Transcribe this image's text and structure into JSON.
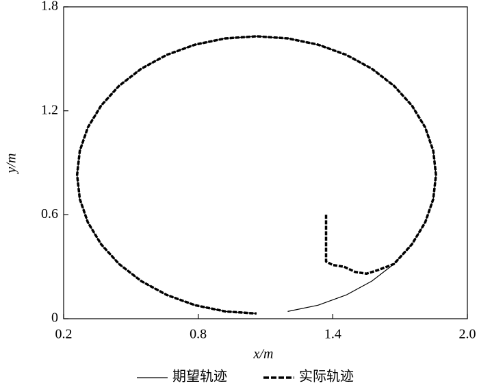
{
  "chart_data": {
    "type": "line",
    "xlabel": "x/m",
    "ylabel": "y/m",
    "xlim": [
      0.2,
      2.0
    ],
    "ylim": [
      0,
      1.8
    ],
    "xticks": [
      0.2,
      0.8,
      1.4,
      {
        "value": 2.0,
        "label": "2.0"
      }
    ],
    "yticks": [
      0,
      0.6,
      1.2,
      1.8
    ],
    "series": [
      {
        "name": "期望轨迹",
        "color": "#000000",
        "dash": false,
        "x": [
          1.199,
          1.334,
          1.46,
          1.574,
          1.673,
          1.753,
          1.812,
          1.848,
          1.86,
          1.848,
          1.812,
          1.753,
          1.673,
          1.574,
          1.46,
          1.334,
          1.199,
          1.06,
          0.921,
          0.786,
          0.66,
          0.546,
          0.447,
          0.367,
          0.308,
          0.272,
          0.26,
          0.272,
          0.308,
          0.367,
          0.447,
          0.546,
          0.66,
          0.786,
          0.921,
          1.06
        ],
        "values": [
          0.042,
          0.078,
          0.137,
          0.217,
          0.316,
          0.43,
          0.556,
          0.691,
          0.83,
          0.969,
          1.104,
          1.23,
          1.344,
          1.443,
          1.523,
          1.582,
          1.618,
          1.63,
          1.618,
          1.582,
          1.523,
          1.443,
          1.344,
          1.23,
          1.104,
          0.969,
          0.83,
          0.691,
          0.556,
          0.43,
          0.316,
          0.217,
          0.137,
          0.078,
          0.042,
          0.03
        ]
      },
      {
        "name": "实际轨迹",
        "color": "#000000",
        "dash": true,
        "x": [
          1.37,
          1.37,
          1.37,
          1.4,
          1.45,
          1.5,
          1.55,
          1.6,
          1.673,
          1.753,
          1.812,
          1.848,
          1.86,
          1.848,
          1.812,
          1.753,
          1.673,
          1.574,
          1.46,
          1.334,
          1.199,
          1.06,
          0.921,
          0.786,
          0.66,
          0.546,
          0.447,
          0.367,
          0.308,
          0.272,
          0.26,
          0.272,
          0.308,
          0.367,
          0.447,
          0.546,
          0.66,
          0.786,
          0.921,
          1.06
        ],
        "values": [
          0.6,
          0.45,
          0.33,
          0.31,
          0.3,
          0.27,
          0.26,
          0.28,
          0.316,
          0.43,
          0.556,
          0.691,
          0.83,
          0.969,
          1.104,
          1.23,
          1.344,
          1.443,
          1.523,
          1.582,
          1.618,
          1.63,
          1.618,
          1.582,
          1.523,
          1.443,
          1.344,
          1.23,
          1.104,
          0.969,
          0.83,
          0.691,
          0.556,
          0.43,
          0.316,
          0.217,
          0.137,
          0.078,
          0.042,
          0.03
        ]
      }
    ]
  }
}
